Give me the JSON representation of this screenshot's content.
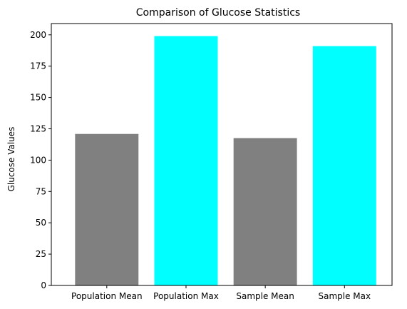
{
  "chart_data": {
    "type": "bar",
    "title": "Comparison of Glucose Statistics",
    "xlabel": "",
    "ylabel": "Glucose Values",
    "categories": [
      "Population Mean",
      "Population Max",
      "Sample Mean",
      "Sample Max"
    ],
    "values": [
      120.9,
      199,
      117.6,
      191
    ],
    "colors": [
      "#808080",
      "#00ffff",
      "#808080",
      "#00ffff"
    ],
    "ylim": [
      0,
      209
    ],
    "yticks": [
      0,
      25,
      50,
      75,
      100,
      125,
      150,
      175,
      200
    ],
    "grid": false,
    "legend": "none"
  }
}
